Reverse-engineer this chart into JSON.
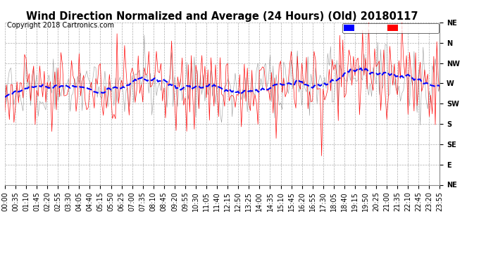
{
  "title": "Wind Direction Normalized and Average (24 Hours) (Old) 20180117",
  "copyright": "Copyright 2018 Cartronics.com",
  "y_tick_labels": [
    "NE",
    "N",
    "NW",
    "W",
    "SW",
    "S",
    "SE",
    "E",
    "NE"
  ],
  "y_tick_values": [
    0,
    45,
    90,
    135,
    180,
    225,
    270,
    315,
    360
  ],
  "ylim": [
    0,
    360
  ],
  "background_color": "#ffffff",
  "plot_bg_color": "#ffffff",
  "grid_color": "#999999",
  "red_color": "#ff0000",
  "blue_color": "#0000ff",
  "gray_color": "#555555",
  "title_fontsize": 10.5,
  "copyright_fontsize": 7,
  "tick_fontsize": 7,
  "legend_blue_bg": "#0000ff",
  "legend_red_bg": "#ff0000",
  "seed": 42,
  "n_points": 288,
  "x_tick_step": 7,
  "base_direction": 135,
  "noise_std": 45,
  "spike_interval": 8,
  "spike_magnitude": 80
}
